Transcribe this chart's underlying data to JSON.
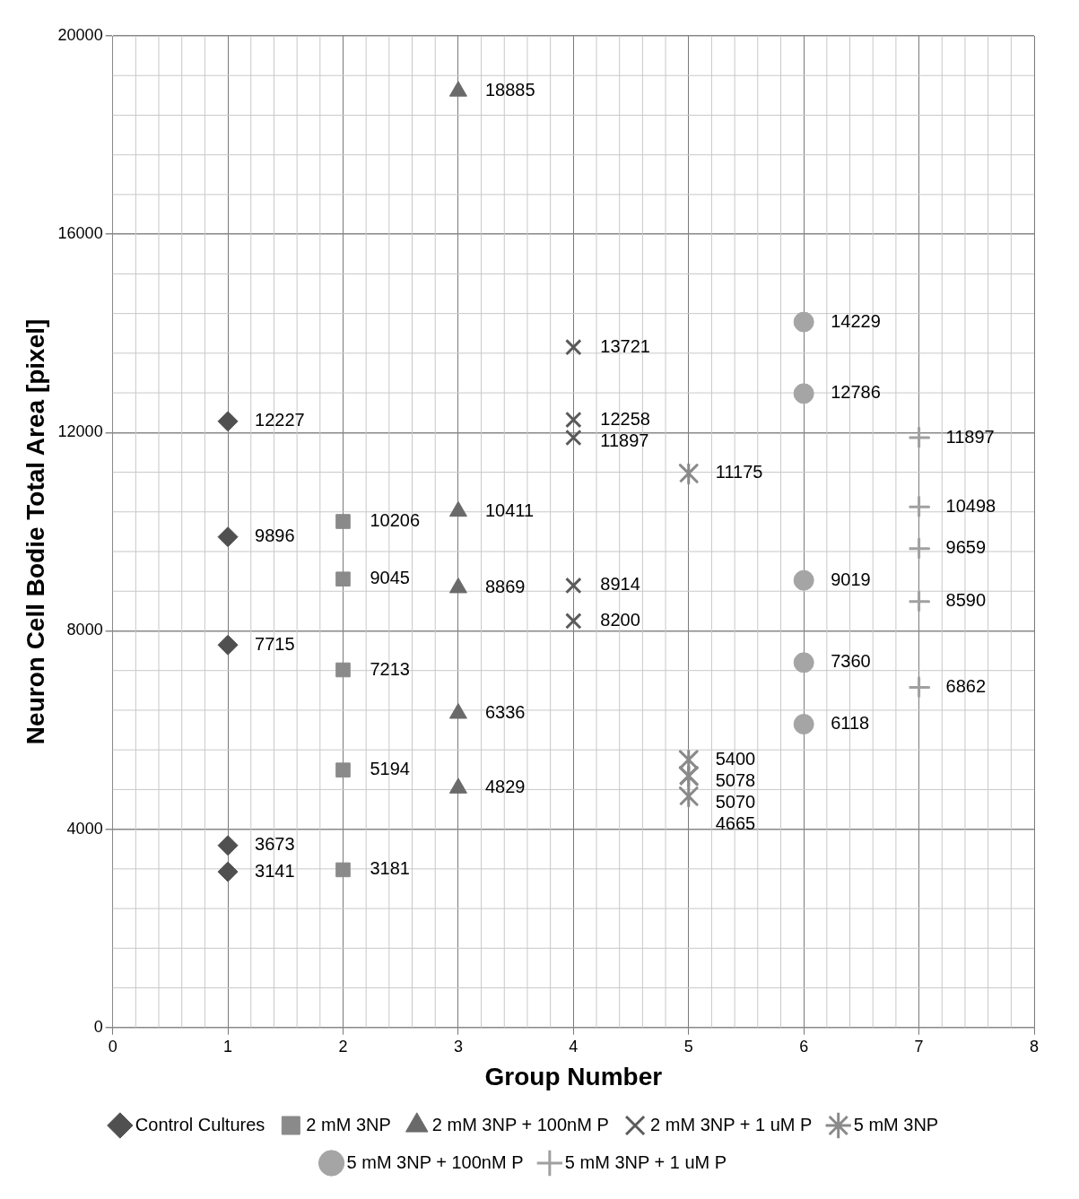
{
  "chart_data": {
    "type": "scatter",
    "xlabel": "Group Number",
    "ylabel": "Neuron Cell Bodie Total Area [pixel]",
    "xlim": [
      0,
      8
    ],
    "xticks": [
      0,
      1,
      2,
      3,
      4,
      5,
      6,
      7,
      8
    ],
    "ylim": [
      0,
      20000
    ],
    "yticks": [
      0,
      4000,
      8000,
      12000,
      16000,
      20000
    ],
    "grid": true,
    "legend": "bottom",
    "data_labels": true,
    "series": [
      {
        "name": "Control Cultures",
        "color": "#505050",
        "marker": "diamond",
        "x": [
          1,
          1,
          1,
          1,
          1
        ],
        "values": [
          12227,
          9896,
          7715,
          3673,
          3141
        ]
      },
      {
        "name": "2 mM 3NP",
        "color": "#8a8a8a",
        "marker": "square",
        "x": [
          2,
          2,
          2,
          2,
          2
        ],
        "values": [
          10206,
          9045,
          7213,
          5194,
          3181
        ]
      },
      {
        "name": "2 mM 3NP + 100nM P",
        "color": "#6a6a6a",
        "marker": "triangle",
        "x": [
          3,
          3,
          3,
          3,
          3
        ],
        "values": [
          18885,
          10411,
          8869,
          6336,
          4829
        ]
      },
      {
        "name": "2 mM 3NP + 1 uM P",
        "color": "#5a5a5a",
        "marker": "cross",
        "x": [
          4,
          4,
          4,
          4,
          4
        ],
        "values": [
          13721,
          12258,
          11897,
          8914,
          8200
        ]
      },
      {
        "name": "5 mM 3NP",
        "color": "#8a8a8a",
        "marker": "cross",
        "x": [
          5,
          5,
          5,
          5,
          5
        ],
        "values": [
          11175,
          5400,
          5070,
          5078,
          4665
        ]
      },
      {
        "name": "5 mM 3NP + 100nM P",
        "color": "#a5a5a5",
        "marker": "circle",
        "x": [
          6,
          6,
          6,
          6,
          6
        ],
        "values": [
          14229,
          12786,
          9019,
          7360,
          6118
        ]
      },
      {
        "name": "5 mM 3NP + 1 uM P",
        "color": "#a0a0a0",
        "marker": "cross",
        "x": [
          7,
          7,
          7,
          7,
          7
        ],
        "values": [
          11897,
          10498,
          9659,
          8590,
          6862
        ]
      }
    ]
  }
}
